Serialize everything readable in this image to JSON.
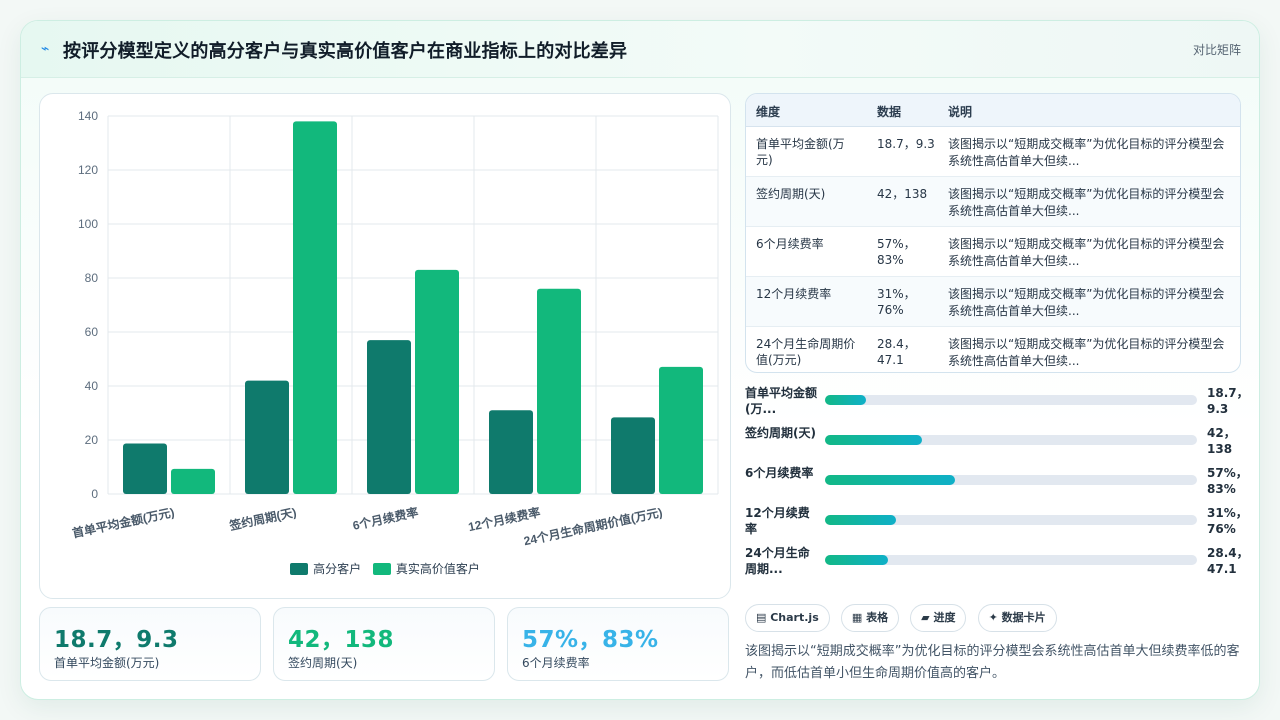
{
  "header": {
    "icon": "spark-icon",
    "title": "按评分模型定义的高分客户与真实高价值客户在商业指标上的对比差异",
    "tag": "对比矩阵"
  },
  "chart_data": {
    "type": "bar",
    "categories": [
      "首单平均金额(万元)",
      "签约周期(天)",
      "6个月续费率",
      "12个月续费率",
      "24个月生命周期价值(万元)"
    ],
    "series": [
      {
        "name": "高分客户",
        "values": [
          18.7,
          42,
          57,
          31,
          28.4
        ],
        "color": "#0f7a6c"
      },
      {
        "name": "真实高价值客户",
        "values": [
          9.3,
          138,
          83,
          76,
          47.1
        ],
        "color": "#12b87c"
      }
    ],
    "y_ticks": [
      0,
      20,
      40,
      60,
      80,
      100,
      120,
      140
    ],
    "ylim": [
      0,
      140
    ],
    "grid": true,
    "legend_position": "bottom"
  },
  "stats": [
    {
      "value": "18.7，9.3",
      "label": "首单平均金额(万元)",
      "color": "#0f7a6c"
    },
    {
      "value": "42，138",
      "label": "签约周期(天)",
      "color": "#12b87c"
    },
    {
      "value": "57%，83%",
      "label": "6个月续费率",
      "color": "#38b3e8"
    }
  ],
  "table": {
    "headers": [
      "维度",
      "数据",
      "说明"
    ],
    "rows": [
      {
        "dim": "首单平均金额(万元)",
        "data": "18.7，9.3",
        "note": "该图揭示以“短期成交概率”为优化目标的评分模型会系统性高估首单大但续..."
      },
      {
        "dim": "签约周期(天)",
        "data": "42，138",
        "note": "该图揭示以“短期成交概率”为优化目标的评分模型会系统性高估首单大但续..."
      },
      {
        "dim": "6个月续费率",
        "data": "57%，83%",
        "note": "该图揭示以“短期成交概率”为优化目标的评分模型会系统性高估首单大但续..."
      },
      {
        "dim": "12个月续费率",
        "data": "31%，76%",
        "note": "该图揭示以“短期成交概率”为优化目标的评分模型会系统性高估首单大但续..."
      },
      {
        "dim": "24个月生命周期价值(万元)",
        "data": "28.4，47.1",
        "note": "该图揭示以“短期成交概率”为优化目标的评分模型会系统性高估首单大但续..."
      }
    ]
  },
  "progress": [
    {
      "label": "首单平均金额(万...",
      "value": "18.7，9.3",
      "fraction": 0.11
    },
    {
      "label": "签约周期(天)",
      "value": "42，138",
      "fraction": 0.26
    },
    {
      "label": "6个月续费率",
      "value": "57%，83%",
      "fraction": 0.35
    },
    {
      "label": "12个月续费率",
      "value": "31%，76%",
      "fraction": 0.19
    },
    {
      "label": "24个月生命周期...",
      "value": "28.4，47.1",
      "fraction": 0.17
    }
  ],
  "chips": [
    {
      "icon": "chart-icon",
      "label": "Chart.js"
    },
    {
      "icon": "table-icon",
      "label": "表格"
    },
    {
      "icon": "progress-icon",
      "label": "进度"
    },
    {
      "icon": "sparkle-icon",
      "label": "数据卡片"
    }
  ],
  "description": "该图揭示以“短期成交概率”为优化目标的评分模型会系统性高估首单大但续费率低的客户，而低估首单小但生命周期价值高的客户。"
}
